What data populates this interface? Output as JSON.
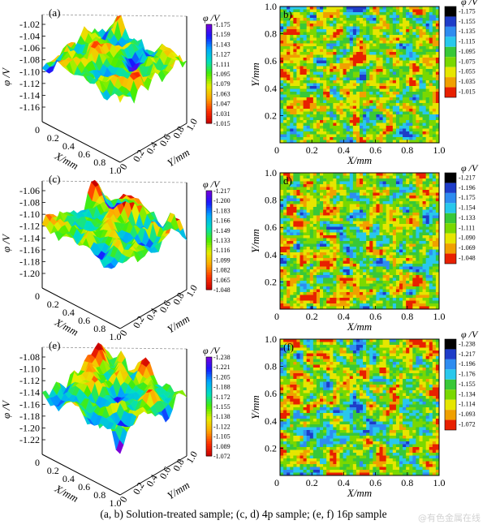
{
  "caption": "(a, b) Solution-treated sample; (c, d) 4p sample; (e, f) 16p sample",
  "watermark": "@有色金属在线",
  "colors": {
    "rainbow": [
      "#7a00d8",
      "#1818ff",
      "#00a8ff",
      "#00e0c0",
      "#48ee00",
      "#e6ee00",
      "#ffa600",
      "#ff3000",
      "#c80000"
    ],
    "contour_rows": [
      [
        "#000000",
        "#1e3cc8",
        "#2e8cf0",
        "#28c8ec",
        "#38c838",
        "#7ad800",
        "#e6e600",
        "#f0a000",
        "#e82000"
      ],
      [
        "#000000",
        "#1e3cc8",
        "#2e8cf0",
        "#28c8ec",
        "#38c838",
        "#7ad800",
        "#e6e600",
        "#f0a000",
        "#e82000"
      ],
      [
        "#000000",
        "#1e3cc8",
        "#2e8cf0",
        "#28c8ec",
        "#38c838",
        "#7ad800",
        "#e6e600",
        "#f0a000",
        "#e82000"
      ]
    ]
  },
  "chart_data": [
    {
      "panel": "(a)",
      "type": "surface3d",
      "zlabel": "φ /V",
      "xlabel": "X/mm",
      "ylabel": "Y/mm",
      "zticks": [
        "-1.02",
        "-1.04",
        "-1.06",
        "-1.08",
        "-1.10",
        "-1.12",
        "-1.14",
        "-1.16"
      ],
      "xticks": [
        "0",
        "0.2",
        "0.4",
        "0.6",
        "0.8",
        "1.0"
      ],
      "yticks": [
        "0",
        "0.2",
        "0.4",
        "0.6",
        "0.8",
        "1.0"
      ],
      "colorbar_title": "φ /V",
      "colorbar_ticks": [
        "-1.175",
        "-1.159",
        "-1.143",
        "-1.127",
        "-1.111",
        "-1.095",
        "-1.079",
        "-1.063",
        "-1.047",
        "-1.031",
        "-1.015"
      ],
      "zlim": [
        -1.17,
        -1.015
      ]
    },
    {
      "panel": "b)",
      "type": "contour",
      "xlabel": "X/mm",
      "ylabel": "Y/mm",
      "xticks": [
        "0",
        "0.2",
        "0.4",
        "0.6",
        "0.8",
        "1.0"
      ],
      "yticks": [
        "0",
        "0.2",
        "0.4",
        "0.6",
        "0.8",
        "1.0"
      ],
      "colorbar_title": "φ /V",
      "colorbar_ticks": [
        "-1.175",
        "-1.155",
        "-1.135",
        "-1.115",
        "-1.095",
        "-1.075",
        "-1.055",
        "-1.035",
        "-1.015"
      ]
    },
    {
      "panel": "(c)",
      "type": "surface3d",
      "zlabel": "φ /V",
      "xlabel": "X/mm",
      "ylabel": "Y/mm",
      "zticks": [
        "-1.06",
        "-1.08",
        "-1.10",
        "-1.12",
        "-1.14",
        "-1.16",
        "-1.18",
        "-1.20"
      ],
      "xticks": [
        "0",
        "0.2",
        "0.4",
        "0.6",
        "0.8",
        "1.0"
      ],
      "yticks": [
        "0",
        "0.2",
        "0.4",
        "0.6",
        "0.8",
        "1.0"
      ],
      "colorbar_title": "φ /V",
      "colorbar_ticks": [
        "-1.217",
        "-1.200",
        "-1.183",
        "-1.166",
        "-1.149",
        "-1.133",
        "-1.116",
        "-1.099",
        "-1.082",
        "-1.065",
        "-1.048"
      ],
      "zlim": [
        -1.21,
        -1.05
      ]
    },
    {
      "panel": "d)",
      "type": "contour",
      "xlabel": "X/mm",
      "ylabel": "Y/mm",
      "xticks": [
        "0",
        "0.2",
        "0.4",
        "0.6",
        "0.8",
        "1.0"
      ],
      "yticks": [
        "0",
        "0.2",
        "0.4",
        "0.6",
        "0.8",
        "1.0"
      ],
      "colorbar_title": "φ /V",
      "colorbar_ticks": [
        "-1.217",
        "-1.196",
        "-1.175",
        "-1.154",
        "-1.133",
        "-1.111",
        "-1.090",
        "-1.069",
        "-1.048"
      ]
    },
    {
      "panel": "(e)",
      "type": "surface3d",
      "zlabel": "φ /V",
      "xlabel": "X/mm",
      "ylabel": "Y/mm",
      "zticks": [
        "-1.08",
        "-1.10",
        "-1.12",
        "-1.14",
        "-1.16",
        "-1.18",
        "-1.20",
        "-1.22"
      ],
      "xticks": [
        "0",
        "0.2",
        "0.4",
        "0.6",
        "0.8",
        "1.0"
      ],
      "yticks": [
        "0",
        "0.2",
        "0.4",
        "0.6",
        "0.8",
        "1.0"
      ],
      "colorbar_title": "φ /V",
      "colorbar_ticks": [
        "-1.238",
        "-1.221",
        "-1.205",
        "-1.188",
        "-1.172",
        "-1.155",
        "-1.138",
        "-1.122",
        "-1.105",
        "-1.089",
        "-1.072"
      ],
      "zlim": [
        -1.22,
        -1.08
      ]
    },
    {
      "panel": "(f)",
      "type": "contour",
      "xlabel": "X/mm",
      "ylabel": "Y/mm",
      "xticks": [
        "0",
        "0.2",
        "0.4",
        "0.6",
        "0.8",
        "1.0"
      ],
      "yticks": [
        "0",
        "0.2",
        "0.4",
        "0.6",
        "0.8",
        "1.0"
      ],
      "colorbar_title": "φ /V",
      "colorbar_ticks": [
        "-1.238",
        "-1.217",
        "-1.196",
        "-1.176",
        "-1.155",
        "-1.134",
        "-1.114",
        "-1.093",
        "-1.072"
      ]
    }
  ]
}
